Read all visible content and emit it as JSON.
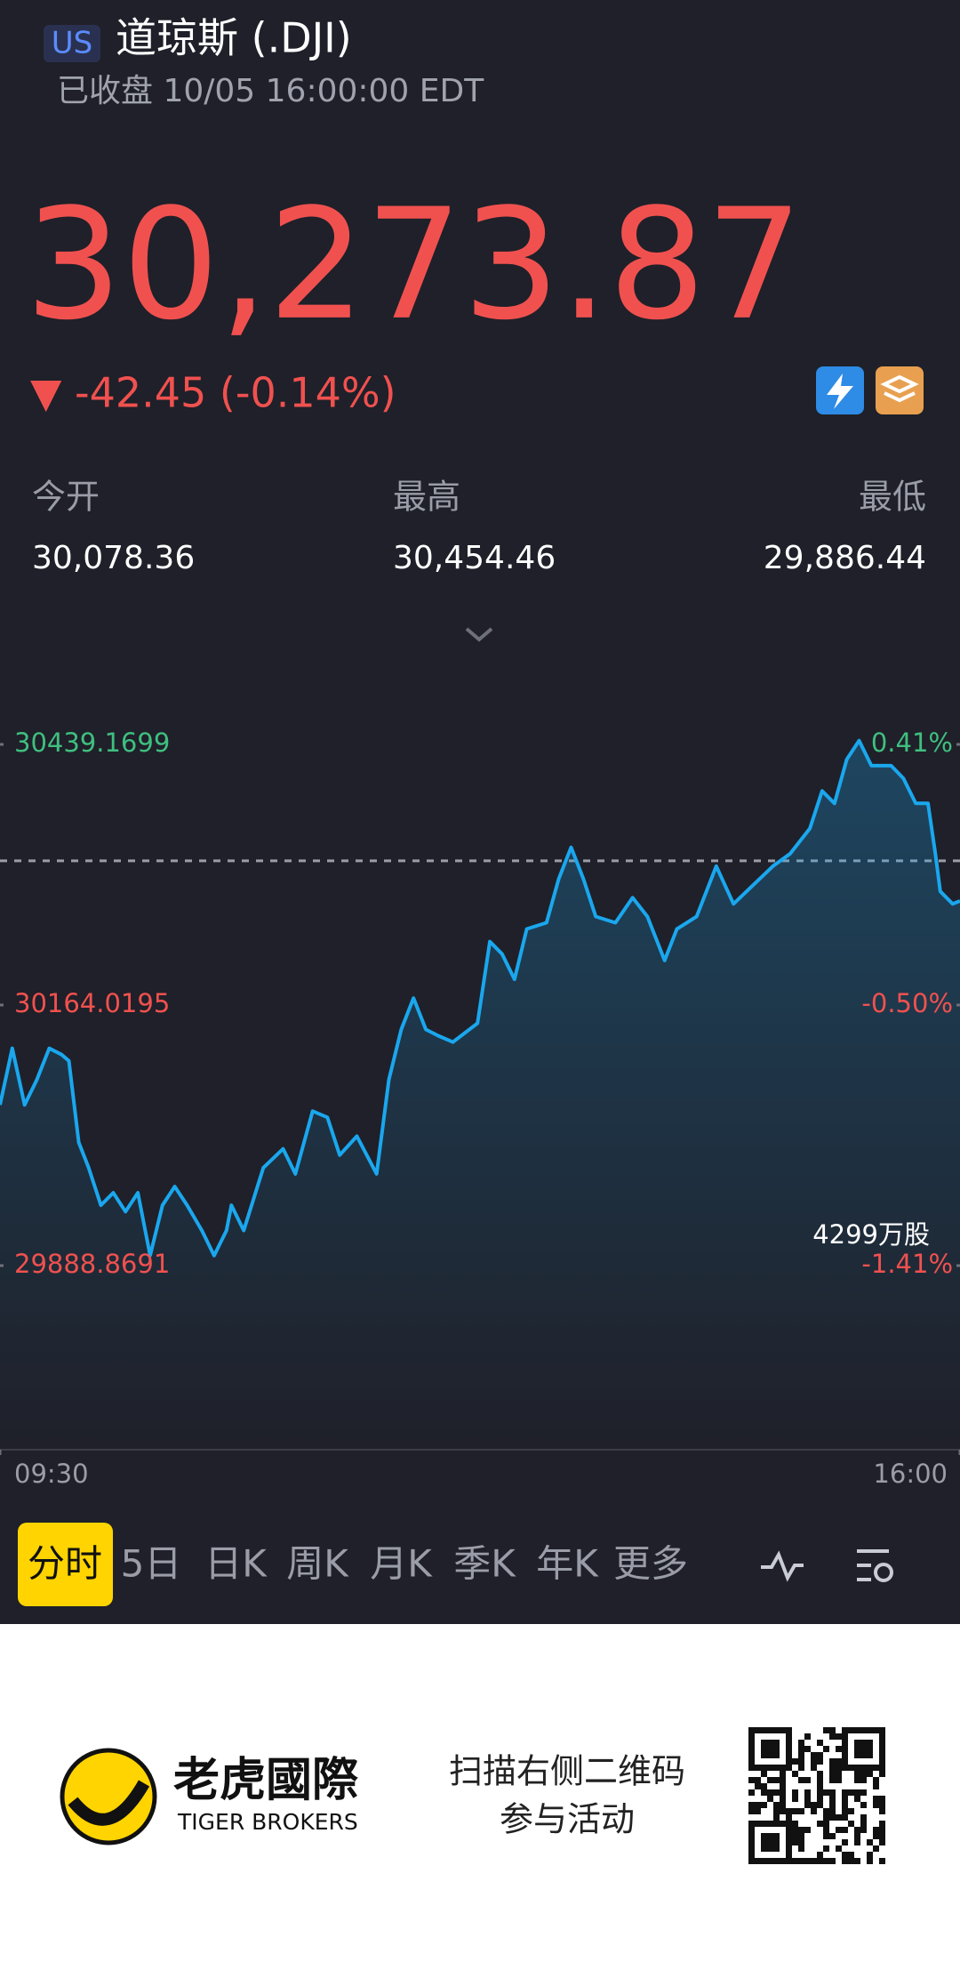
{
  "header": {
    "market": "US",
    "title": "道琼斯 (.DJI)",
    "status": "已收盘 10/05 16:00:00 EDT"
  },
  "quote": {
    "price": "30,273.87",
    "change": "▼ -42.45 (-0.14%)"
  },
  "stats": [
    {
      "label": "今开",
      "value": "30,078.36"
    },
    {
      "label": "最高",
      "value": "30,454.46"
    },
    {
      "label": "最低",
      "value": "29,886.44"
    }
  ],
  "chart_data": {
    "type": "line",
    "color": "#1aa7ee",
    "x": [
      0,
      5,
      10,
      15,
      20,
      25,
      28,
      32,
      36,
      41,
      46,
      51,
      56,
      61,
      66,
      71,
      76,
      82,
      87,
      92,
      94,
      99,
      107,
      115,
      120,
      127,
      133,
      138,
      145,
      153,
      158,
      163,
      168,
      173,
      178,
      184,
      194,
      199,
      204,
      209,
      214,
      222,
      227,
      232,
      237,
      242,
      250,
      257,
      263,
      270,
      275,
      283,
      291,
      298,
      306,
      314,
      321,
      329,
      334,
      339,
      344,
      349,
      354,
      362,
      367,
      372,
      377,
      380,
      382,
      387,
      390
    ],
    "values": [
      30058.6,
      30118.3,
      30058.6,
      30085.2,
      30118.3,
      30111.7,
      30105.0,
      30018.9,
      29992.3,
      29952.6,
      29965.8,
      29945.9,
      29965.8,
      29899.5,
      29952.6,
      29972.4,
      29952.6,
      29926.0,
      29899.5,
      29926.0,
      29952.6,
      29926.0,
      29992.3,
      30012.2,
      29985.7,
      30052.0,
      30045.4,
      30005.6,
      30025.5,
      29985.7,
      30085.2,
      30138.2,
      30171.3,
      30138.2,
      30131.6,
      30124.9,
      30144.8,
      30231.0,
      30217.8,
      30191.2,
      30244.3,
      30250.9,
      30297.3,
      30330.5,
      30297.3,
      30257.5,
      30250.9,
      30277.4,
      30257.5,
      30211.1,
      30244.3,
      30257.5,
      30310.6,
      30270.8,
      30290.7,
      30310.6,
      30323.8,
      30350.4,
      30390.1,
      30376.9,
      30423.3,
      30443.2,
      30416.7,
      30416.7,
      30403.4,
      30376.9,
      30376.9,
      30323.8,
      30284.0,
      30270.8,
      30273.87
    ],
    "xlim": [
      0,
      390
    ],
    "xticks": [
      {
        "value": 0,
        "label": "09:30"
      },
      {
        "value": 390,
        "label": "16:00"
      }
    ],
    "ylim": [
      29888.8691,
      30439.1699
    ],
    "yticks": [
      30439.1699,
      30164.0195,
      29888.8691
    ],
    "y2lim": [
      -1.41,
      0.41
    ],
    "y2ticks": [
      {
        "value": 0.41,
        "label": "0.41%"
      },
      {
        "value": -0.5,
        "label": "-0.50%"
      },
      {
        "value": -1.41,
        "label": "-1.41%"
      }
    ],
    "reference_line": 30316.32,
    "volume_label": "4299万股"
  },
  "tabs": [
    "分时",
    "5日",
    "日K",
    "周K",
    "月K",
    "季K",
    "年K",
    "更多"
  ],
  "footer": {
    "brand": "老虎國際",
    "brand_en": "TIGER BROKERS",
    "prompt_line1": "扫描右侧二维码",
    "prompt_line2": "参与活动"
  }
}
